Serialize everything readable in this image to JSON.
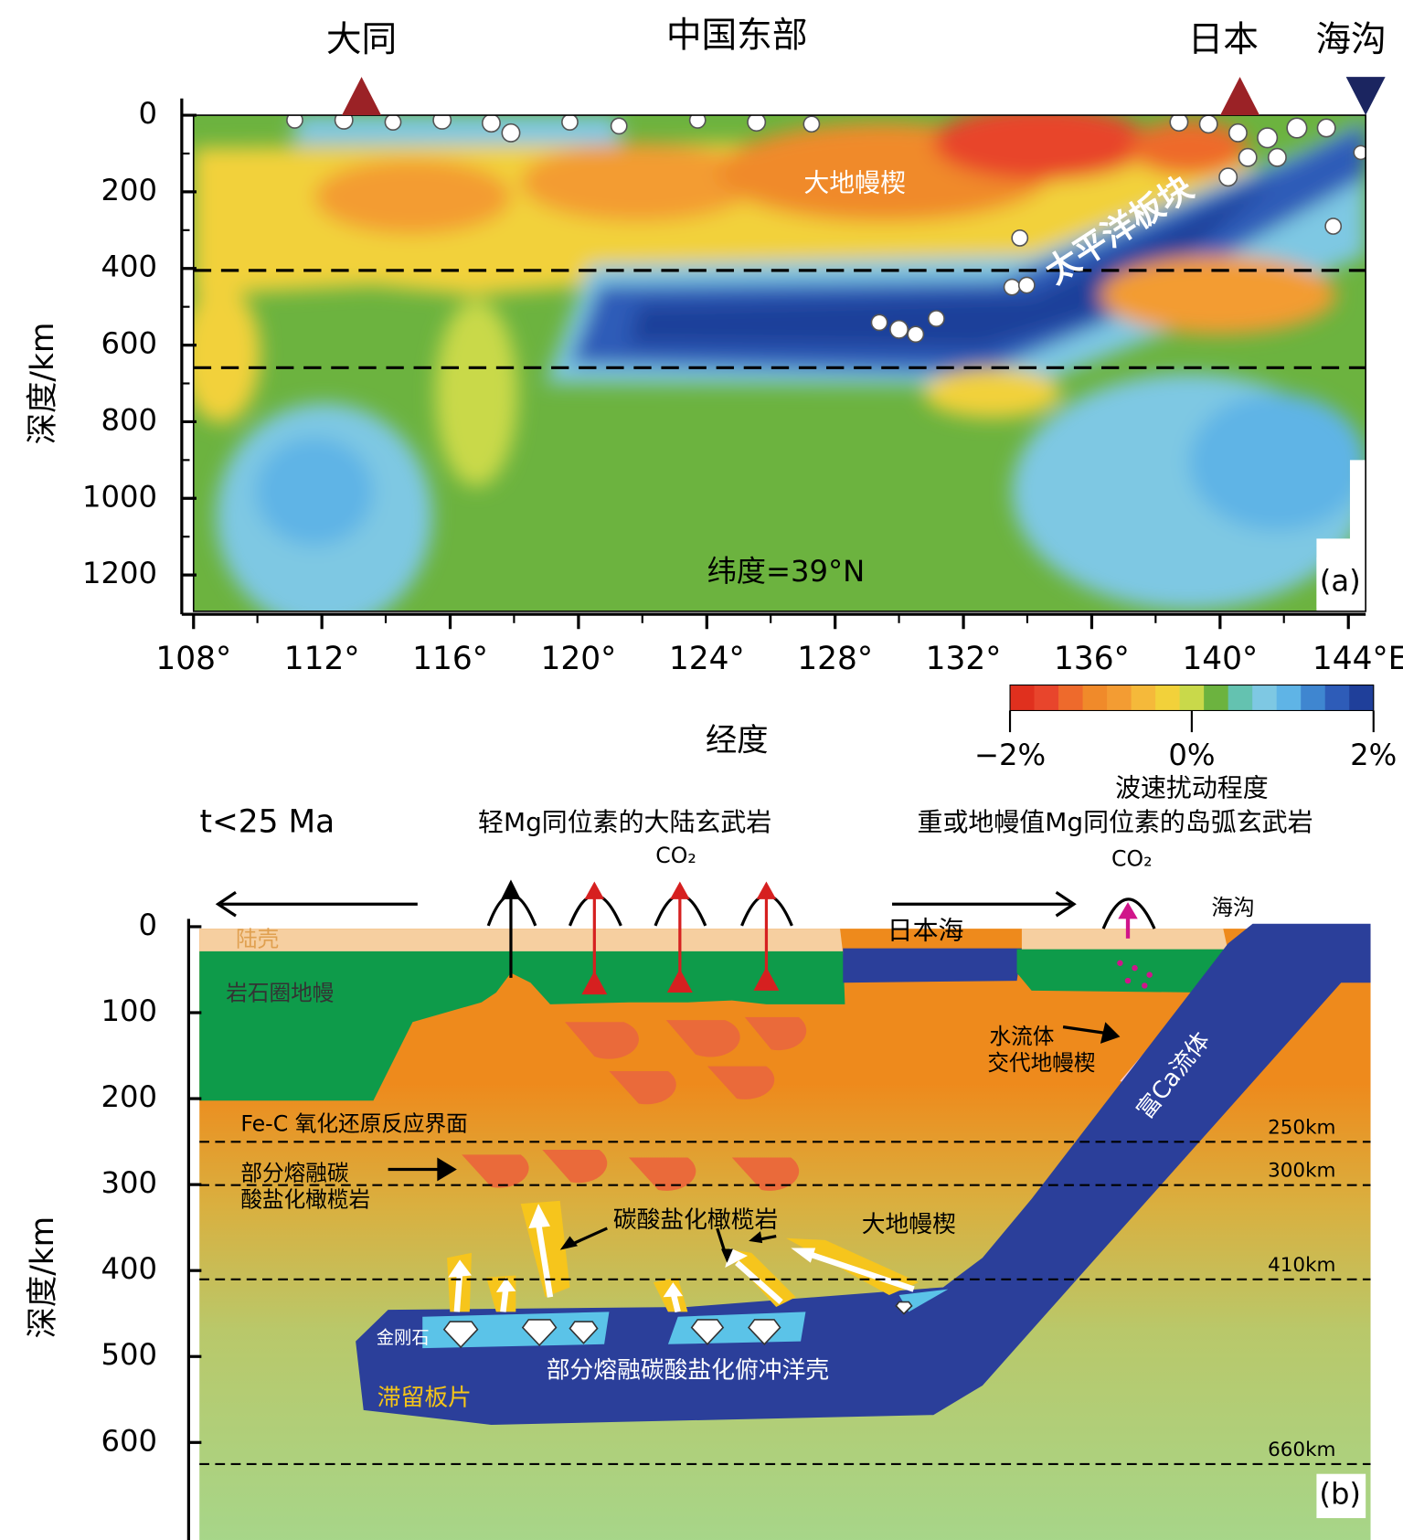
{
  "panel_a": {
    "top_labels": [
      "大同",
      "中国东部",
      "日本",
      "海沟"
    ],
    "y_axis_label": "深度/km",
    "y_ticks": [
      "0",
      "200",
      "400",
      "600",
      "800",
      "1000",
      "1200"
    ],
    "x_ticks": [
      "108°",
      "112°",
      "116°",
      "120°",
      "124°",
      "128°",
      "132°",
      "136°",
      "140°",
      "144°E"
    ],
    "x_axis_label": "经度",
    "annotations": [
      "大地幔楔",
      "太平洋板块",
      "纬度=39°N"
    ],
    "panel_label": "(a)",
    "colorbar": {
      "ticks": [
        "−2%",
        "0%",
        "2%"
      ],
      "title": "波速扰动程度"
    }
  },
  "panel_b": {
    "time": "t<25 Ma",
    "top_left": "轻Mg同位素的大陆玄武岩",
    "top_right": "重或地幔值Mg同位素的岛弧玄武岩",
    "co2_labels": [
      "CO₂",
      "CO₂"
    ],
    "y_axis_label": "深度/km",
    "y_ticks": [
      "0",
      "100",
      "200",
      "300",
      "400",
      "500",
      "600"
    ],
    "labels": {
      "crust": "陆壳",
      "lithosphere": "岩石圈地幔",
      "japan_sea": "日本海",
      "trench": "海沟",
      "fluid": [
        "水流体",
        "交代地幔楔"
      ],
      "ca_fluid": "富Ca流体",
      "fe_c": "Fe-C 氧化还原反应界面",
      "partial_melt": [
        "部分熔融碳",
        "酸盐化橄榄岩"
      ],
      "carbonated": "碳酸盐化橄榄岩",
      "wedge": "大地幔楔",
      "diamond": "金刚石",
      "crust_melt": "部分熔融碳酸盐化俯冲洋壳",
      "stagnant": "滞留板片"
    },
    "depth_lines": [
      "250km",
      "300km",
      "410km",
      "660km"
    ],
    "panel_label": "(b)"
  }
}
